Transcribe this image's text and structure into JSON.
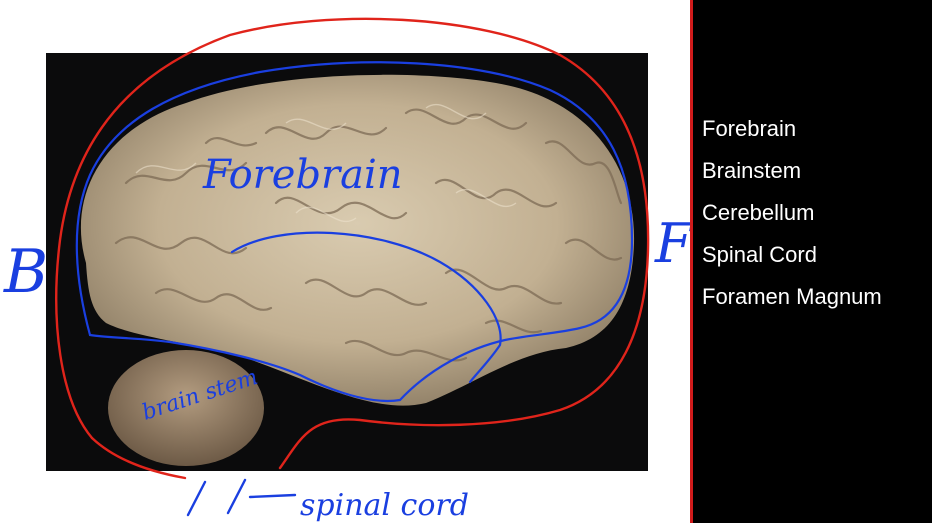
{
  "slide": {
    "background_color": "#ffffff",
    "annotation_colors": {
      "red": "#e0241b",
      "blue": "#1a3fe0"
    },
    "handwritten_labels": {
      "forebrain": "Forebrain",
      "brainstem": "brain stem",
      "spinal_cord": "spinal cord",
      "left_letter": "B",
      "right_letter": "F"
    }
  },
  "side_panel": {
    "background_color": "#000000",
    "divider_color": "#d11b1b",
    "terms": [
      "Forebrain",
      "Brainstem",
      "Cerebellum",
      "Spinal Cord",
      "Foramen Magnum"
    ]
  }
}
